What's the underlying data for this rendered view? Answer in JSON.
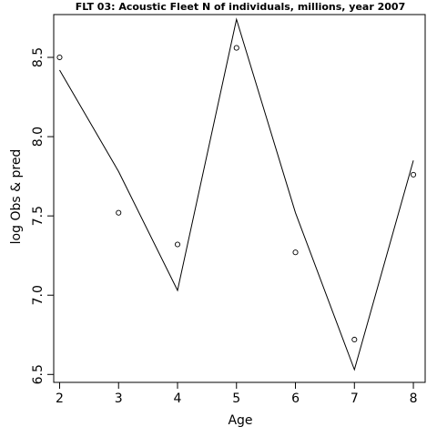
{
  "chart_data": {
    "type": "line",
    "title": "FLT 03: Acoustic Fleet  N of individuals, millions, year 2007",
    "xlabel": "Age",
    "ylabel": "log Obs & pred",
    "x": [
      2,
      3,
      4,
      5,
      6,
      7,
      8
    ],
    "x_ticks": [
      "2",
      "3",
      "4",
      "5",
      "6",
      "7",
      "8"
    ],
    "y_ticks": [
      "6.5",
      "7.0",
      "7.5",
      "8.0",
      "8.5"
    ],
    "xlim": [
      1.9,
      8.2
    ],
    "ylim": [
      6.45,
      8.77
    ],
    "grid": false,
    "series": [
      {
        "role": "observed",
        "marker": "open-circle",
        "values": [
          8.5,
          7.52,
          7.32,
          8.56,
          7.27,
          6.72,
          7.76
        ]
      },
      {
        "role": "predicted",
        "marker": "line",
        "values": [
          8.42,
          7.78,
          7.03,
          8.74,
          7.52,
          6.53,
          7.85
        ]
      }
    ]
  }
}
